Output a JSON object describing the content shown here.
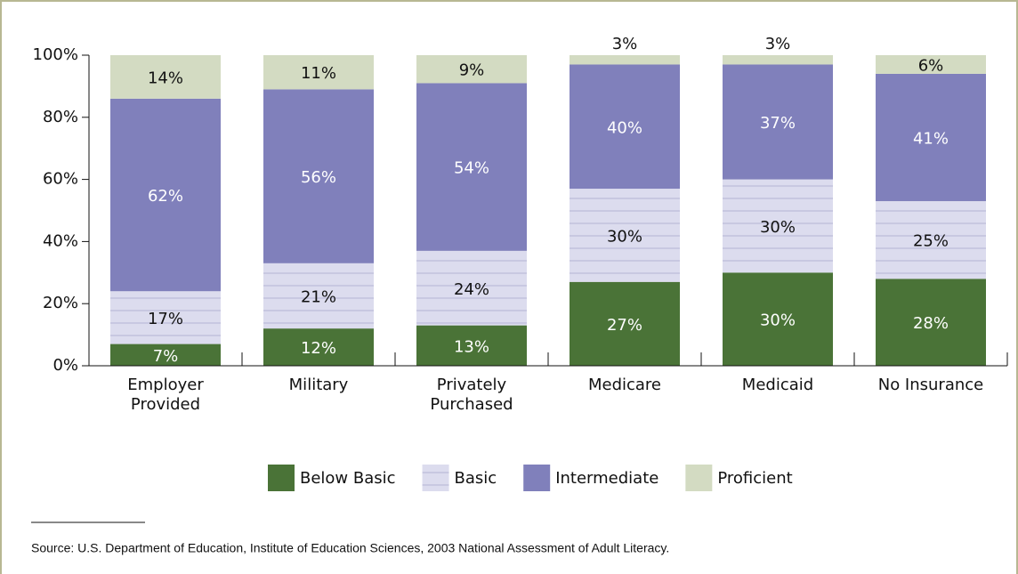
{
  "chart_data": {
    "type": "stacked_bar",
    "categories": [
      "Employer Provided",
      "Military",
      "Privately Purchased",
      "Medicare",
      "Medicaid",
      "No Insurance"
    ],
    "series": [
      {
        "name": "Below Basic",
        "color": "#4a7337",
        "values": [
          7,
          12,
          13,
          27,
          30,
          28
        ],
        "value_labels": [
          "7%",
          "12%",
          "13%",
          "27%",
          "30%",
          "28%"
        ]
      },
      {
        "name": "Basic",
        "color": "#dcdcee",
        "values": [
          17,
          21,
          24,
          30,
          30,
          25
        ],
        "value_labels": [
          "17%",
          "21%",
          "24%",
          "30%",
          "30%",
          "25%"
        ]
      },
      {
        "name": "Intermediate",
        "color": "#8080bb",
        "values": [
          62,
          56,
          54,
          40,
          37,
          41
        ],
        "value_labels": [
          "62%",
          "56%",
          "54%",
          "40%",
          "37%",
          "41%"
        ]
      },
      {
        "name": "Proficient",
        "color": "#d3dbc2",
        "values": [
          14,
          11,
          9,
          3,
          3,
          6
        ],
        "value_labels": [
          "14%",
          "11%",
          "9%",
          "3%",
          "3%",
          "6%"
        ]
      }
    ],
    "ylim": [
      0,
      100
    ],
    "yticks": [
      {
        "value": 0,
        "label": "0%"
      },
      {
        "value": 20,
        "label": "20%"
      },
      {
        "value": 40,
        "label": "40%"
      },
      {
        "value": 60,
        "label": "60%"
      },
      {
        "value": 80,
        "label": "80%"
      },
      {
        "value": 100,
        "label": "100%"
      }
    ],
    "source": "Source: U.S. Department of Education, Institute of Education Sciences, 2003 National Assessment of Adult Literacy."
  }
}
